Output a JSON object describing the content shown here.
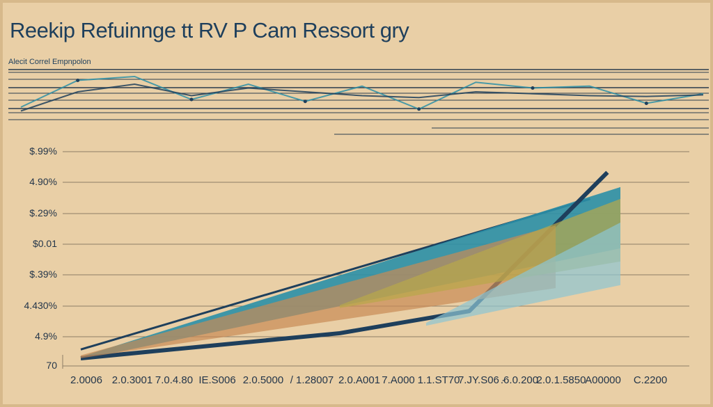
{
  "colors": {
    "background": "#e9cfa6",
    "navy": "#1e3f5c",
    "teal": "#2b8fa7",
    "light_blue": "#8cc5d3",
    "orange": "#c88a55",
    "olive": "#b8a84a",
    "grid": "#8d7d66"
  },
  "chart_data": [
    {
      "type": "line",
      "title": "Reekip Refuinnge tt RV P Cam Ressort gry",
      "subtitle": "Alecit Correl Empnpolon",
      "x": [
        0,
        1,
        2,
        3,
        4,
        5,
        6,
        7,
        8,
        9,
        10,
        11,
        12
      ],
      "series": [
        {
          "values": [
            0.2,
            0.9,
            1.0,
            0.4,
            0.8,
            0.35,
            0.75,
            0.15,
            0.85,
            0.7,
            0.75,
            0.3,
            0.55
          ]
        },
        {
          "values": [
            0.1,
            0.6,
            0.8,
            0.5,
            0.7,
            0.6,
            0.5,
            0.45,
            0.6,
            0.55,
            0.5,
            0.48,
            0.52
          ]
        }
      ],
      "grid": true
    },
    {
      "type": "area",
      "yticks": [
        "$.99%",
        "4.90%",
        "$.29%",
        "$0.01",
        "$.39%",
        "4.430%",
        "4.9%",
        "70"
      ],
      "categories": [
        "2.0006",
        "2.0.3001",
        "7.0.4.80",
        "IE.S006",
        "2.0.5000",
        "/ 1.28007",
        "2.0.A001",
        "7.A000",
        "1.1.ST70",
        "7.JY.S06 -",
        ".6.0.200",
        "2.0.1.5850",
        "A00000",
        "C.2200"
      ],
      "ylim": [
        0,
        7
      ],
      "series": [
        {
          "color": "#1e3f5c",
          "x": [
            0,
            11.8
          ],
          "y": [
            0.3,
            5.4
          ]
        },
        {
          "color": "#2b8fa7",
          "x": [
            0,
            12.5
          ],
          "y": [
            0.05,
            5.8
          ]
        },
        {
          "color": "#1e3f5c",
          "x": [
            0,
            6,
            9,
            12.2
          ],
          "y": [
            0.0,
            0.85,
            1.6,
            6.3
          ]
        },
        {
          "color": "#c88a55",
          "x": [
            0,
            11
          ],
          "y": [
            0.1,
            4.5
          ]
        },
        {
          "color": "#b8a84a",
          "x": [
            6,
            12.5
          ],
          "y": [
            1.8,
            5.4
          ]
        },
        {
          "color": "#8cc5d3",
          "x": [
            8,
            12.5
          ],
          "y": [
            1.2,
            4.6
          ]
        }
      ],
      "grid": true
    }
  ]
}
